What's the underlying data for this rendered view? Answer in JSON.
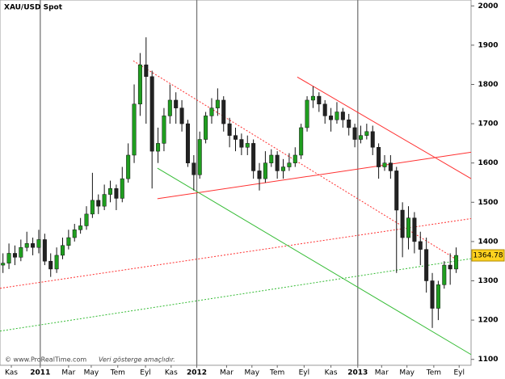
{
  "chart_data": {
    "type": "candlestick",
    "title": "XAU/USD Spot",
    "source": "© www.ProRealTime.com",
    "disclaimer": "Veri gösterge amaçlıdır.",
    "x": [
      1,
      3,
      5,
      7,
      9,
      11,
      13,
      15,
      17,
      19,
      21,
      23,
      25,
      27,
      29,
      31,
      33,
      35,
      37,
      39,
      41,
      43,
      45,
      47,
      49,
      51,
      53,
      55,
      57,
      59,
      61,
      63,
      65,
      67,
      69,
      71,
      73,
      75,
      77,
      79,
      81,
      83,
      85,
      87,
      89,
      91,
      93,
      95,
      97,
      99,
      101,
      103,
      105,
      107,
      109,
      111,
      113,
      115,
      117,
      119,
      121,
      123,
      125,
      127,
      129,
      131,
      133,
      135,
      137,
      139,
      141,
      143,
      145,
      147,
      149,
      151,
      153
    ],
    "open": [
      1340,
      1345,
      1370,
      1360,
      1385,
      1395,
      1385,
      1405,
      1350,
      1330,
      1365,
      1390,
      1410,
      1430,
      1440,
      1470,
      1505,
      1490,
      1520,
      1535,
      1510,
      1560,
      1620,
      1750,
      1850,
      1820,
      1630,
      1650,
      1720,
      1760,
      1740,
      1700,
      1600,
      1570,
      1660,
      1720,
      1740,
      1760,
      1700,
      1670,
      1660,
      1640,
      1650,
      1580,
      1560,
      1600,
      1620,
      1580,
      1590,
      1600,
      1620,
      1690,
      1760,
      1770,
      1750,
      1720,
      1710,
      1730,
      1710,
      1690,
      1660,
      1670,
      1680,
      1640,
      1590,
      1600,
      1580,
      1480,
      1410,
      1460,
      1400,
      1380,
      1300,
      1230,
      1290,
      1340,
      1330
    ],
    "high": [
      1370,
      1395,
      1390,
      1405,
      1425,
      1410,
      1430,
      1420,
      1370,
      1385,
      1410,
      1430,
      1445,
      1460,
      1490,
      1575,
      1520,
      1545,
      1555,
      1545,
      1590,
      1650,
      1800,
      1880,
      1920,
      1835,
      1690,
      1740,
      1800,
      1780,
      1760,
      1710,
      1620,
      1680,
      1730,
      1765,
      1790,
      1770,
      1715,
      1690,
      1675,
      1670,
      1660,
      1600,
      1630,
      1635,
      1630,
      1610,
      1625,
      1640,
      1700,
      1770,
      1795,
      1780,
      1760,
      1740,
      1755,
      1740,
      1725,
      1700,
      1695,
      1700,
      1695,
      1650,
      1620,
      1620,
      1590,
      1500,
      1490,
      1475,
      1425,
      1410,
      1320,
      1300,
      1350,
      1370,
      1385
    ],
    "low": [
      1320,
      1330,
      1340,
      1350,
      1375,
      1365,
      1370,
      1340,
      1310,
      1320,
      1355,
      1380,
      1400,
      1420,
      1430,
      1460,
      1470,
      1480,
      1500,
      1480,
      1500,
      1550,
      1600,
      1720,
      1700,
      1535,
      1600,
      1630,
      1700,
      1700,
      1680,
      1590,
      1530,
      1560,
      1650,
      1700,
      1720,
      1680,
      1640,
      1630,
      1620,
      1620,
      1560,
      1530,
      1550,
      1590,
      1560,
      1560,
      1580,
      1590,
      1610,
      1680,
      1740,
      1730,
      1700,
      1680,
      1700,
      1690,
      1670,
      1640,
      1650,
      1660,
      1620,
      1560,
      1580,
      1560,
      1320,
      1360,
      1380,
      1370,
      1340,
      1270,
      1180,
      1200,
      1280,
      1290,
      1320
    ],
    "close": [
      1345,
      1370,
      1360,
      1385,
      1395,
      1385,
      1405,
      1350,
      1330,
      1365,
      1390,
      1410,
      1430,
      1440,
      1470,
      1505,
      1490,
      1520,
      1535,
      1510,
      1560,
      1620,
      1750,
      1850,
      1820,
      1630,
      1650,
      1720,
      1760,
      1740,
      1700,
      1600,
      1570,
      1660,
      1720,
      1740,
      1760,
      1700,
      1670,
      1660,
      1640,
      1650,
      1580,
      1560,
      1600,
      1620,
      1580,
      1590,
      1600,
      1620,
      1690,
      1760,
      1770,
      1750,
      1720,
      1710,
      1730,
      1710,
      1690,
      1660,
      1670,
      1680,
      1640,
      1590,
      1600,
      1580,
      1480,
      1410,
      1460,
      1400,
      1380,
      1300,
      1230,
      1290,
      1340,
      1330,
      1364.78
    ],
    "up_color": "#1f9e1f",
    "down_color": "#222222",
    "xlim": [
      0,
      158
    ],
    "xticks": [
      {
        "value": 3.8,
        "label": "Kas"
      },
      {
        "value": 13.5,
        "label": "2011"
      },
      {
        "value": 23,
        "label": "Mar"
      },
      {
        "value": 30.6,
        "label": "May"
      },
      {
        "value": 39.5,
        "label": "Tem"
      },
      {
        "value": 48.8,
        "label": "Eyl"
      },
      {
        "value": 57.4,
        "label": "Kas"
      },
      {
        "value": 66,
        "label": "2012"
      },
      {
        "value": 76,
        "label": "Mar"
      },
      {
        "value": 84.5,
        "label": "May"
      },
      {
        "value": 93,
        "label": "Tem"
      },
      {
        "value": 102,
        "label": "Eyl"
      },
      {
        "value": 111,
        "label": "Kas"
      },
      {
        "value": 120,
        "label": "2013"
      },
      {
        "value": 128,
        "label": "Mar"
      },
      {
        "value": 136.5,
        "label": "May"
      },
      {
        "value": 145.5,
        "label": "Tem"
      },
      {
        "value": 154,
        "label": "Eyl"
      }
    ],
    "ylim": [
      1085,
      2015
    ],
    "yticks": [
      1100,
      1200,
      1300,
      1400,
      1500,
      1600,
      1700,
      1800,
      1900,
      2000
    ],
    "trendlines": [
      {
        "x": [
          99.7,
          158.5
        ],
        "y": [
          1819,
          1558
        ],
        "color": "#ff3030",
        "dashed": false
      },
      {
        "x": [
          52.8,
          158.5
        ],
        "y": [
          1509,
          1628
        ],
        "color": "#ff3030",
        "dashed": false
      },
      {
        "x": [
          44.7,
          153
        ],
        "y": [
          1860,
          1355
        ],
        "color": "#ff3030",
        "dashed": true
      },
      {
        "x": [
          0,
          158.5
        ],
        "y": [
          1281,
          1459
        ],
        "color": "#ff3030",
        "dashed": true
      },
      {
        "x": [
          52.8,
          158.5
        ],
        "y": [
          1587,
          1110
        ],
        "color": "#33bb33",
        "dashed": false
      },
      {
        "x": [
          0,
          158.5
        ],
        "y": [
          1172,
          1357
        ],
        "color": "#33bb33",
        "dashed": true
      }
    ]
  }
}
